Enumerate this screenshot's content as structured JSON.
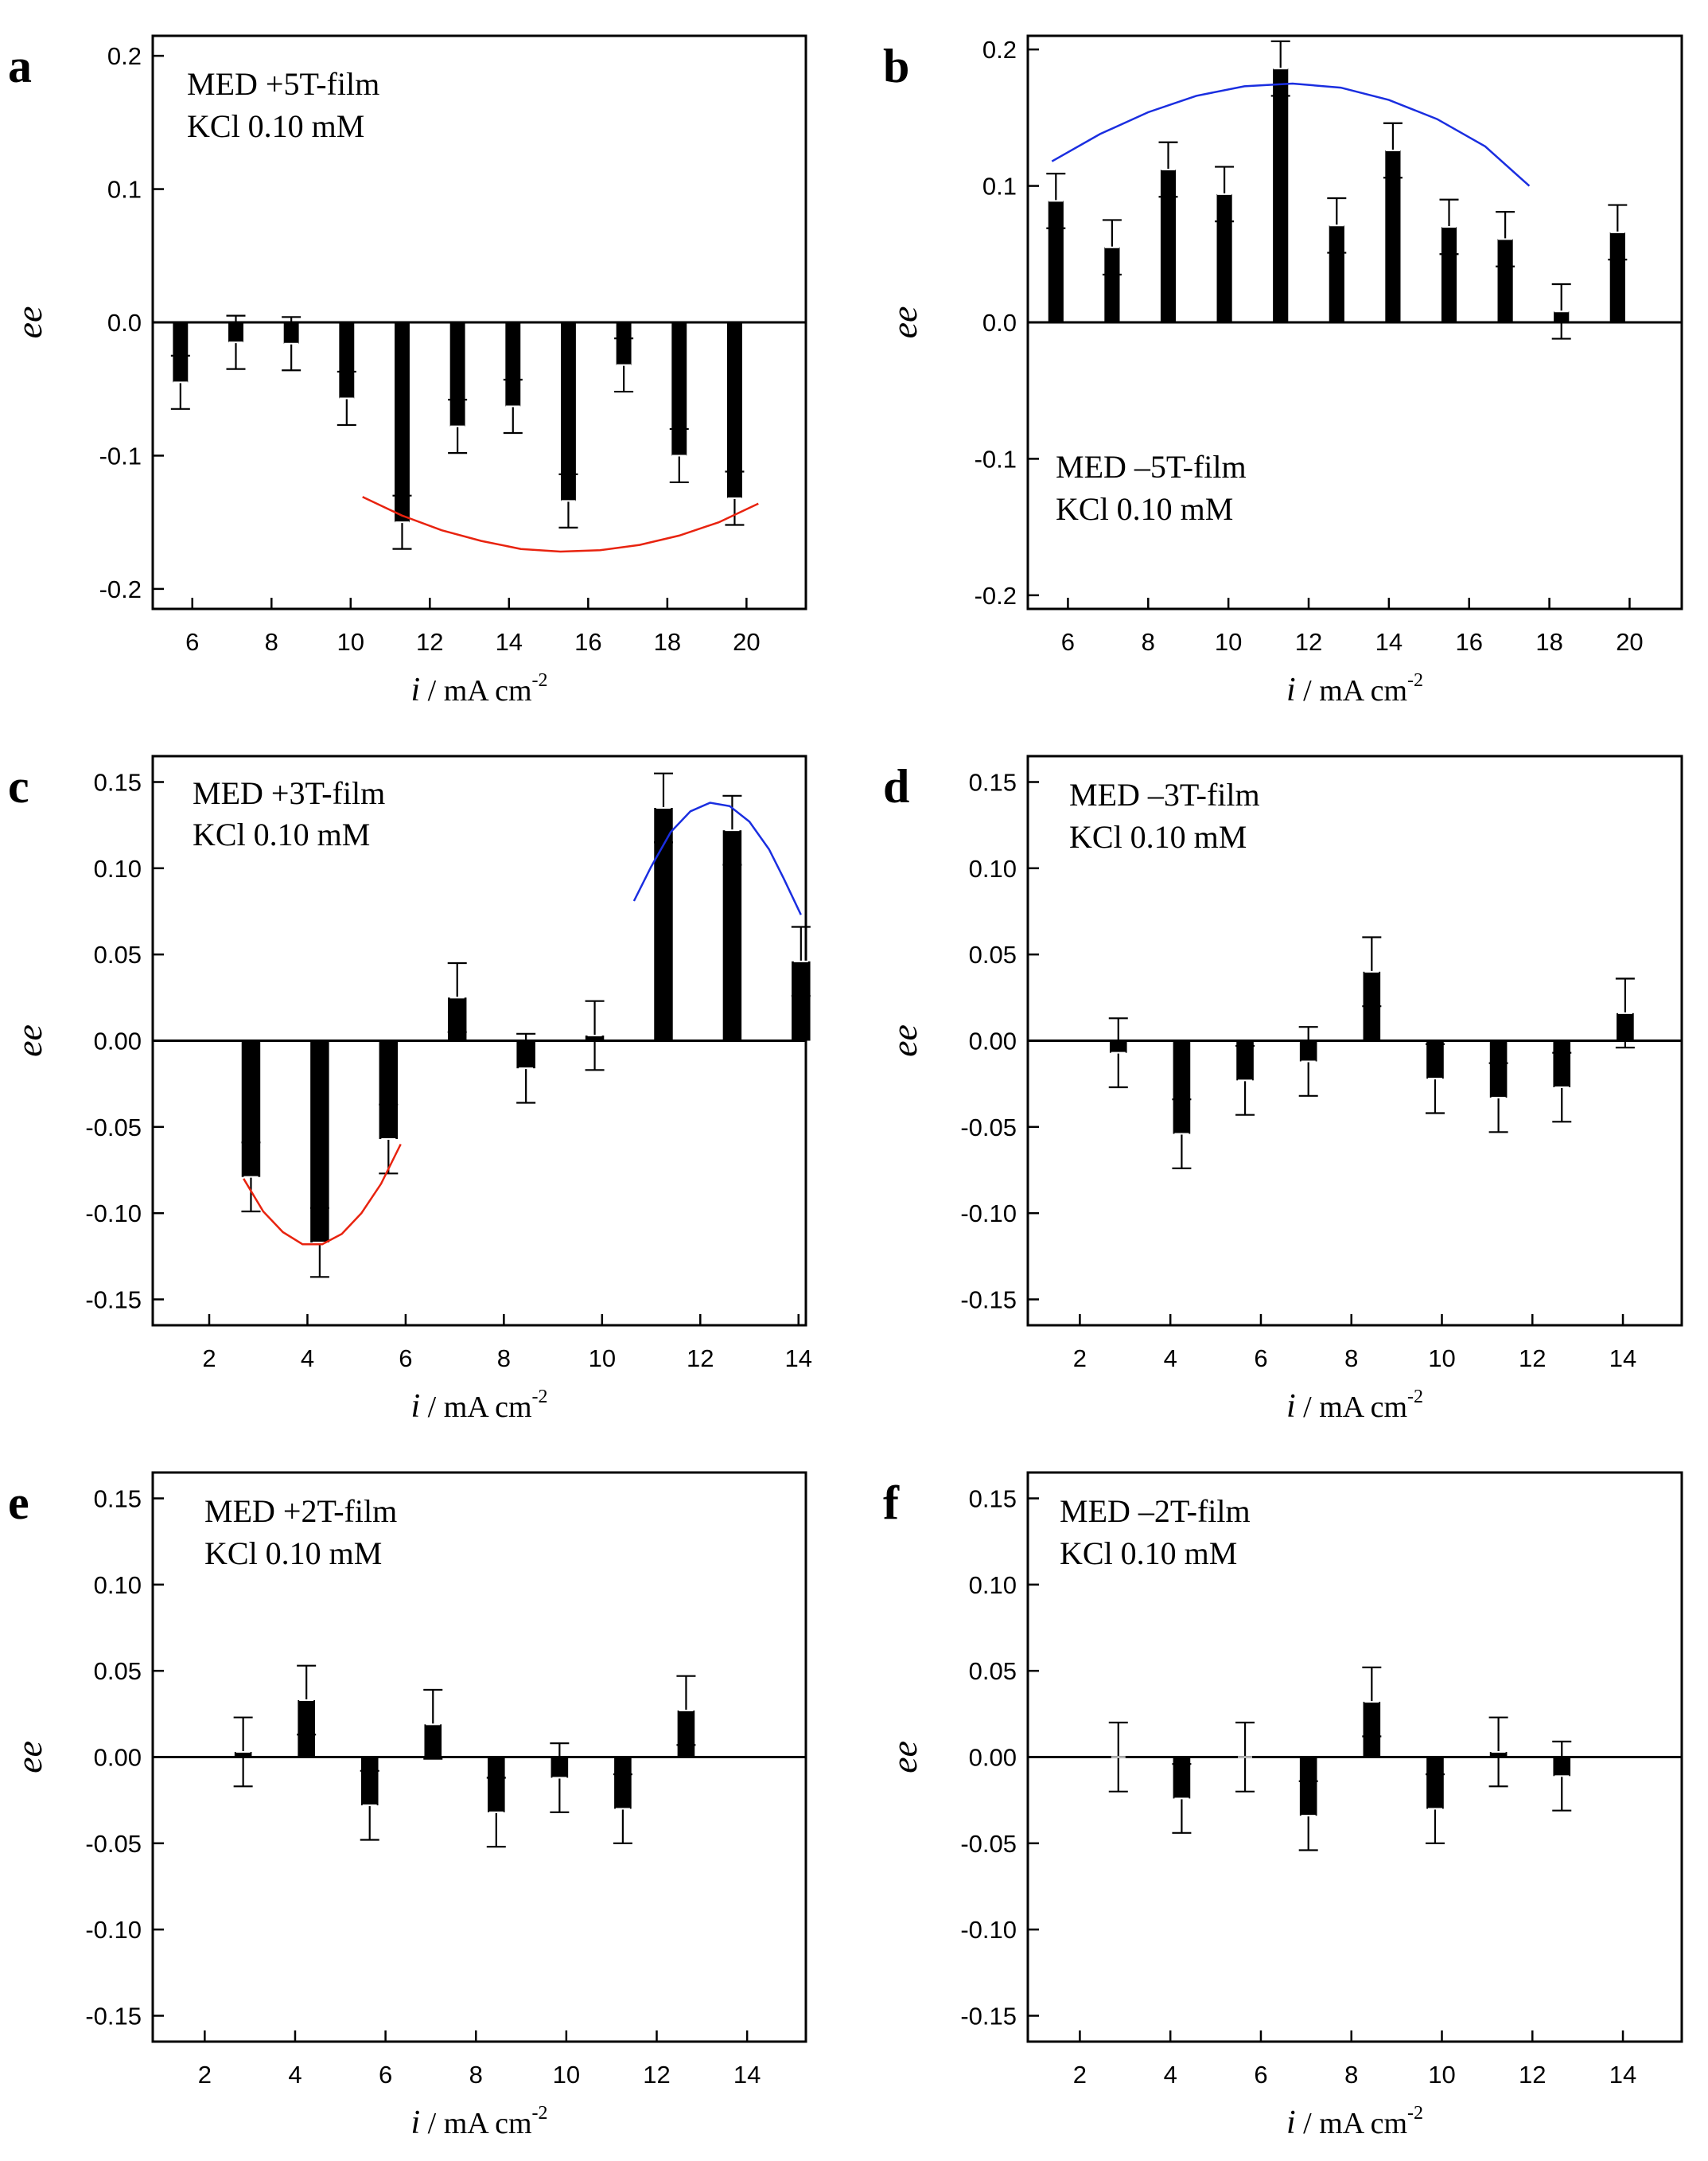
{
  "chart_data": [
    {
      "panel": "a",
      "type": "bar",
      "title": "MED +5T-film",
      "subtitle": "KCl 0.10 mM",
      "xlabel_italic": "i",
      "xlabel_rest": " / mA cm",
      "xlabel_sup": "-2",
      "ylabel": "ee",
      "xlim": [
        5,
        21.5
      ],
      "ylim": [
        -0.215,
        0.215
      ],
      "xticks": [
        6,
        8,
        10,
        12,
        14,
        16,
        18,
        20
      ],
      "xtick_labels": [
        "6",
        "8",
        "10",
        "12",
        "14",
        "16",
        "18",
        "20"
      ],
      "yticks": [
        -0.2,
        -0.1,
        0.0,
        0.1,
        0.2
      ],
      "ytick_labels": [
        "-0.2",
        "-0.1",
        "0.0",
        "0.1",
        "0.2"
      ],
      "bar_width": 0.38,
      "x": [
        5.7,
        7.1,
        8.5,
        9.9,
        11.3,
        12.7,
        14.1,
        15.5,
        16.9,
        18.3,
        19.7
      ],
      "values": [
        -0.045,
        -0.015,
        -0.016,
        -0.057,
        -0.15,
        -0.078,
        -0.063,
        -0.134,
        -0.032,
        -0.1,
        -0.132
      ],
      "errors": [
        0.02,
        0.02,
        0.02,
        0.02,
        0.02,
        0.02,
        0.02,
        0.02,
        0.02,
        0.02,
        0.02
      ],
      "fits": [
        {
          "color": "#e8230f",
          "x": [
            10.3,
            11.3,
            12.3,
            13.3,
            14.3,
            15.3,
            16.3,
            17.3,
            18.3,
            19.3,
            20.3
          ],
          "y": [
            -0.131,
            -0.145,
            -0.156,
            -0.164,
            -0.17,
            -0.172,
            -0.171,
            -0.167,
            -0.16,
            -0.15,
            -0.136
          ]
        }
      ]
    },
    {
      "panel": "b",
      "type": "bar",
      "title": "MED –5T-film",
      "subtitle": "KCl 0.10 mM",
      "xlabel_italic": "i",
      "xlabel_rest": " / mA cm",
      "xlabel_sup": "-2",
      "ylabel": "ee",
      "xlim": [
        5,
        21.3
      ],
      "ylim": [
        -0.21,
        0.21
      ],
      "xticks": [
        6,
        8,
        10,
        12,
        14,
        16,
        18,
        20
      ],
      "xtick_labels": [
        "6",
        "8",
        "10",
        "12",
        "14",
        "16",
        "18",
        "20"
      ],
      "yticks": [
        -0.2,
        -0.1,
        0.0,
        0.1,
        0.2
      ],
      "ytick_labels": [
        "-0.2",
        "-0.1",
        "0.0",
        "0.1",
        "0.2"
      ],
      "bar_width": 0.38,
      "x": [
        5.7,
        7.1,
        8.5,
        9.9,
        11.3,
        12.7,
        14.1,
        15.5,
        16.9,
        18.3,
        19.7
      ],
      "values": [
        0.089,
        0.055,
        0.112,
        0.094,
        0.186,
        0.071,
        0.126,
        0.07,
        0.061,
        0.008,
        0.066
      ],
      "errors": [
        0.02,
        0.02,
        0.02,
        0.02,
        0.02,
        0.02,
        0.02,
        0.02,
        0.02,
        0.02,
        0.02
      ],
      "fits": [
        {
          "color": "#1a2ee0",
          "x": [
            5.6,
            6.8,
            8.0,
            9.2,
            10.4,
            11.6,
            12.8,
            14.0,
            15.2,
            16.4,
            17.5
          ],
          "y": [
            0.118,
            0.138,
            0.154,
            0.166,
            0.173,
            0.175,
            0.172,
            0.163,
            0.149,
            0.129,
            0.1
          ]
        }
      ]
    },
    {
      "panel": "c",
      "type": "bar",
      "title": "MED +3T-film",
      "subtitle": "KCl 0.10 mM",
      "xlabel_italic": "i",
      "xlabel_rest": " / mA cm",
      "xlabel_sup": "-2",
      "ylabel": "ee",
      "xlim": [
        0.85,
        14.15
      ],
      "ylim": [
        -0.165,
        0.165
      ],
      "xticks": [
        2,
        4,
        6,
        8,
        10,
        12,
        14
      ],
      "xtick_labels": [
        "2",
        "4",
        "6",
        "8",
        "10",
        "12",
        "14"
      ],
      "yticks": [
        -0.15,
        -0.1,
        -0.05,
        0.0,
        0.05,
        0.1,
        0.15
      ],
      "ytick_labels": [
        "-0.15",
        "-0.10",
        "-0.05",
        "0.00",
        "0.05",
        "0.10",
        "0.15"
      ],
      "bar_width": 0.38,
      "x": [
        2.85,
        4.25,
        5.65,
        7.05,
        8.45,
        9.85,
        11.25,
        12.65,
        14.05
      ],
      "values": [
        -0.079,
        -0.117,
        -0.057,
        0.025,
        -0.016,
        0.003,
        0.135,
        0.122,
        0.046
      ],
      "errors": [
        0.02,
        0.02,
        0.02,
        0.02,
        0.02,
        0.02,
        0.02,
        0.02,
        0.02
      ],
      "fits": [
        {
          "color": "#e8230f",
          "x": [
            2.7,
            3.1,
            3.5,
            3.9,
            4.3,
            4.7,
            5.1,
            5.5,
            5.9
          ],
          "y": [
            -0.08,
            -0.099,
            -0.111,
            -0.118,
            -0.118,
            -0.112,
            -0.1,
            -0.083,
            -0.06
          ]
        },
        {
          "color": "#1a2ee0",
          "x": [
            10.65,
            11.0,
            11.4,
            11.8,
            12.2,
            12.6,
            13.0,
            13.4,
            13.7,
            14.05
          ],
          "y": [
            0.081,
            0.101,
            0.121,
            0.133,
            0.138,
            0.136,
            0.127,
            0.111,
            0.094,
            0.073
          ]
        }
      ]
    },
    {
      "panel": "d",
      "type": "bar",
      "title": "MED –3T-film",
      "subtitle": "KCl 0.10 mM",
      "xlabel_italic": "i",
      "xlabel_rest": " / mA cm",
      "xlabel_sup": "-2",
      "ylabel": "ee",
      "xlim": [
        0.85,
        15.3
      ],
      "ylim": [
        -0.165,
        0.165
      ],
      "xticks": [
        2,
        4,
        6,
        8,
        10,
        12,
        14
      ],
      "xtick_labels": [
        "2",
        "4",
        "6",
        "8",
        "10",
        "12",
        "14"
      ],
      "yticks": [
        -0.15,
        -0.1,
        -0.05,
        0.0,
        0.05,
        0.1,
        0.15
      ],
      "ytick_labels": [
        "-0.15",
        "-0.10",
        "-0.05",
        "0.00",
        "0.05",
        "0.10",
        "0.15"
      ],
      "bar_width": 0.38,
      "x": [
        2.85,
        4.25,
        5.65,
        7.05,
        8.45,
        9.85,
        11.25,
        12.65,
        14.05
      ],
      "values": [
        -0.007,
        -0.054,
        -0.023,
        -0.012,
        0.04,
        -0.022,
        -0.033,
        -0.027,
        0.016
      ],
      "errors": [
        0.02,
        0.02,
        0.02,
        0.02,
        0.02,
        0.02,
        0.02,
        0.02,
        0.02
      ],
      "fits": []
    },
    {
      "panel": "e",
      "type": "bar",
      "title": "MED +2T-film",
      "subtitle": "KCl 0.10 mM",
      "xlabel_italic": "i",
      "xlabel_rest": " / mA cm",
      "xlabel_sup": "-2",
      "ylabel": "ee",
      "xlim": [
        0.85,
        15.3
      ],
      "ylim": [
        -0.165,
        0.165
      ],
      "xticks": [
        2,
        4,
        6,
        8,
        10,
        12,
        14
      ],
      "xtick_labels": [
        "2",
        "4",
        "6",
        "8",
        "10",
        "12",
        "14"
      ],
      "yticks": [
        -0.15,
        -0.1,
        -0.05,
        0.0,
        0.05,
        0.1,
        0.15
      ],
      "ytick_labels": [
        "-0.15",
        "-0.10",
        "-0.05",
        "0.00",
        "0.05",
        "0.10",
        "0.15"
      ],
      "bar_width": 0.38,
      "x": [
        2.85,
        4.25,
        5.65,
        7.05,
        8.45,
        9.85,
        11.25,
        12.65
      ],
      "values": [
        0.003,
        0.033,
        -0.028,
        0.019,
        -0.032,
        -0.012,
        -0.03,
        0.027
      ],
      "errors": [
        0.02,
        0.02,
        0.02,
        0.02,
        0.02,
        0.02,
        0.02,
        0.02
      ],
      "fits": []
    },
    {
      "panel": "f",
      "type": "bar",
      "title": "MED –2T-film",
      "subtitle": "KCl 0.10 mM",
      "xlabel_italic": "i",
      "xlabel_rest": " / mA cm",
      "xlabel_sup": "-2",
      "ylabel": "ee",
      "xlim": [
        0.85,
        15.3
      ],
      "ylim": [
        -0.165,
        0.165
      ],
      "xticks": [
        2,
        4,
        6,
        8,
        10,
        12,
        14
      ],
      "xtick_labels": [
        "2",
        "4",
        "6",
        "8",
        "10",
        "12",
        "14"
      ],
      "yticks": [
        -0.15,
        -0.1,
        -0.05,
        0.0,
        0.05,
        0.1,
        0.15
      ],
      "ytick_labels": [
        "-0.15",
        "-0.10",
        "-0.05",
        "0.00",
        "0.05",
        "0.10",
        "0.15"
      ],
      "bar_width": 0.38,
      "x": [
        2.85,
        4.25,
        5.65,
        7.05,
        8.45,
        9.85,
        11.25,
        12.65
      ],
      "values": [
        0.0,
        -0.024,
        0.0,
        -0.034,
        0.032,
        -0.03,
        0.003,
        -0.011
      ],
      "errors": [
        0.02,
        0.02,
        0.02,
        0.02,
        0.02,
        0.02,
        0.02,
        0.02
      ],
      "fits": []
    }
  ]
}
